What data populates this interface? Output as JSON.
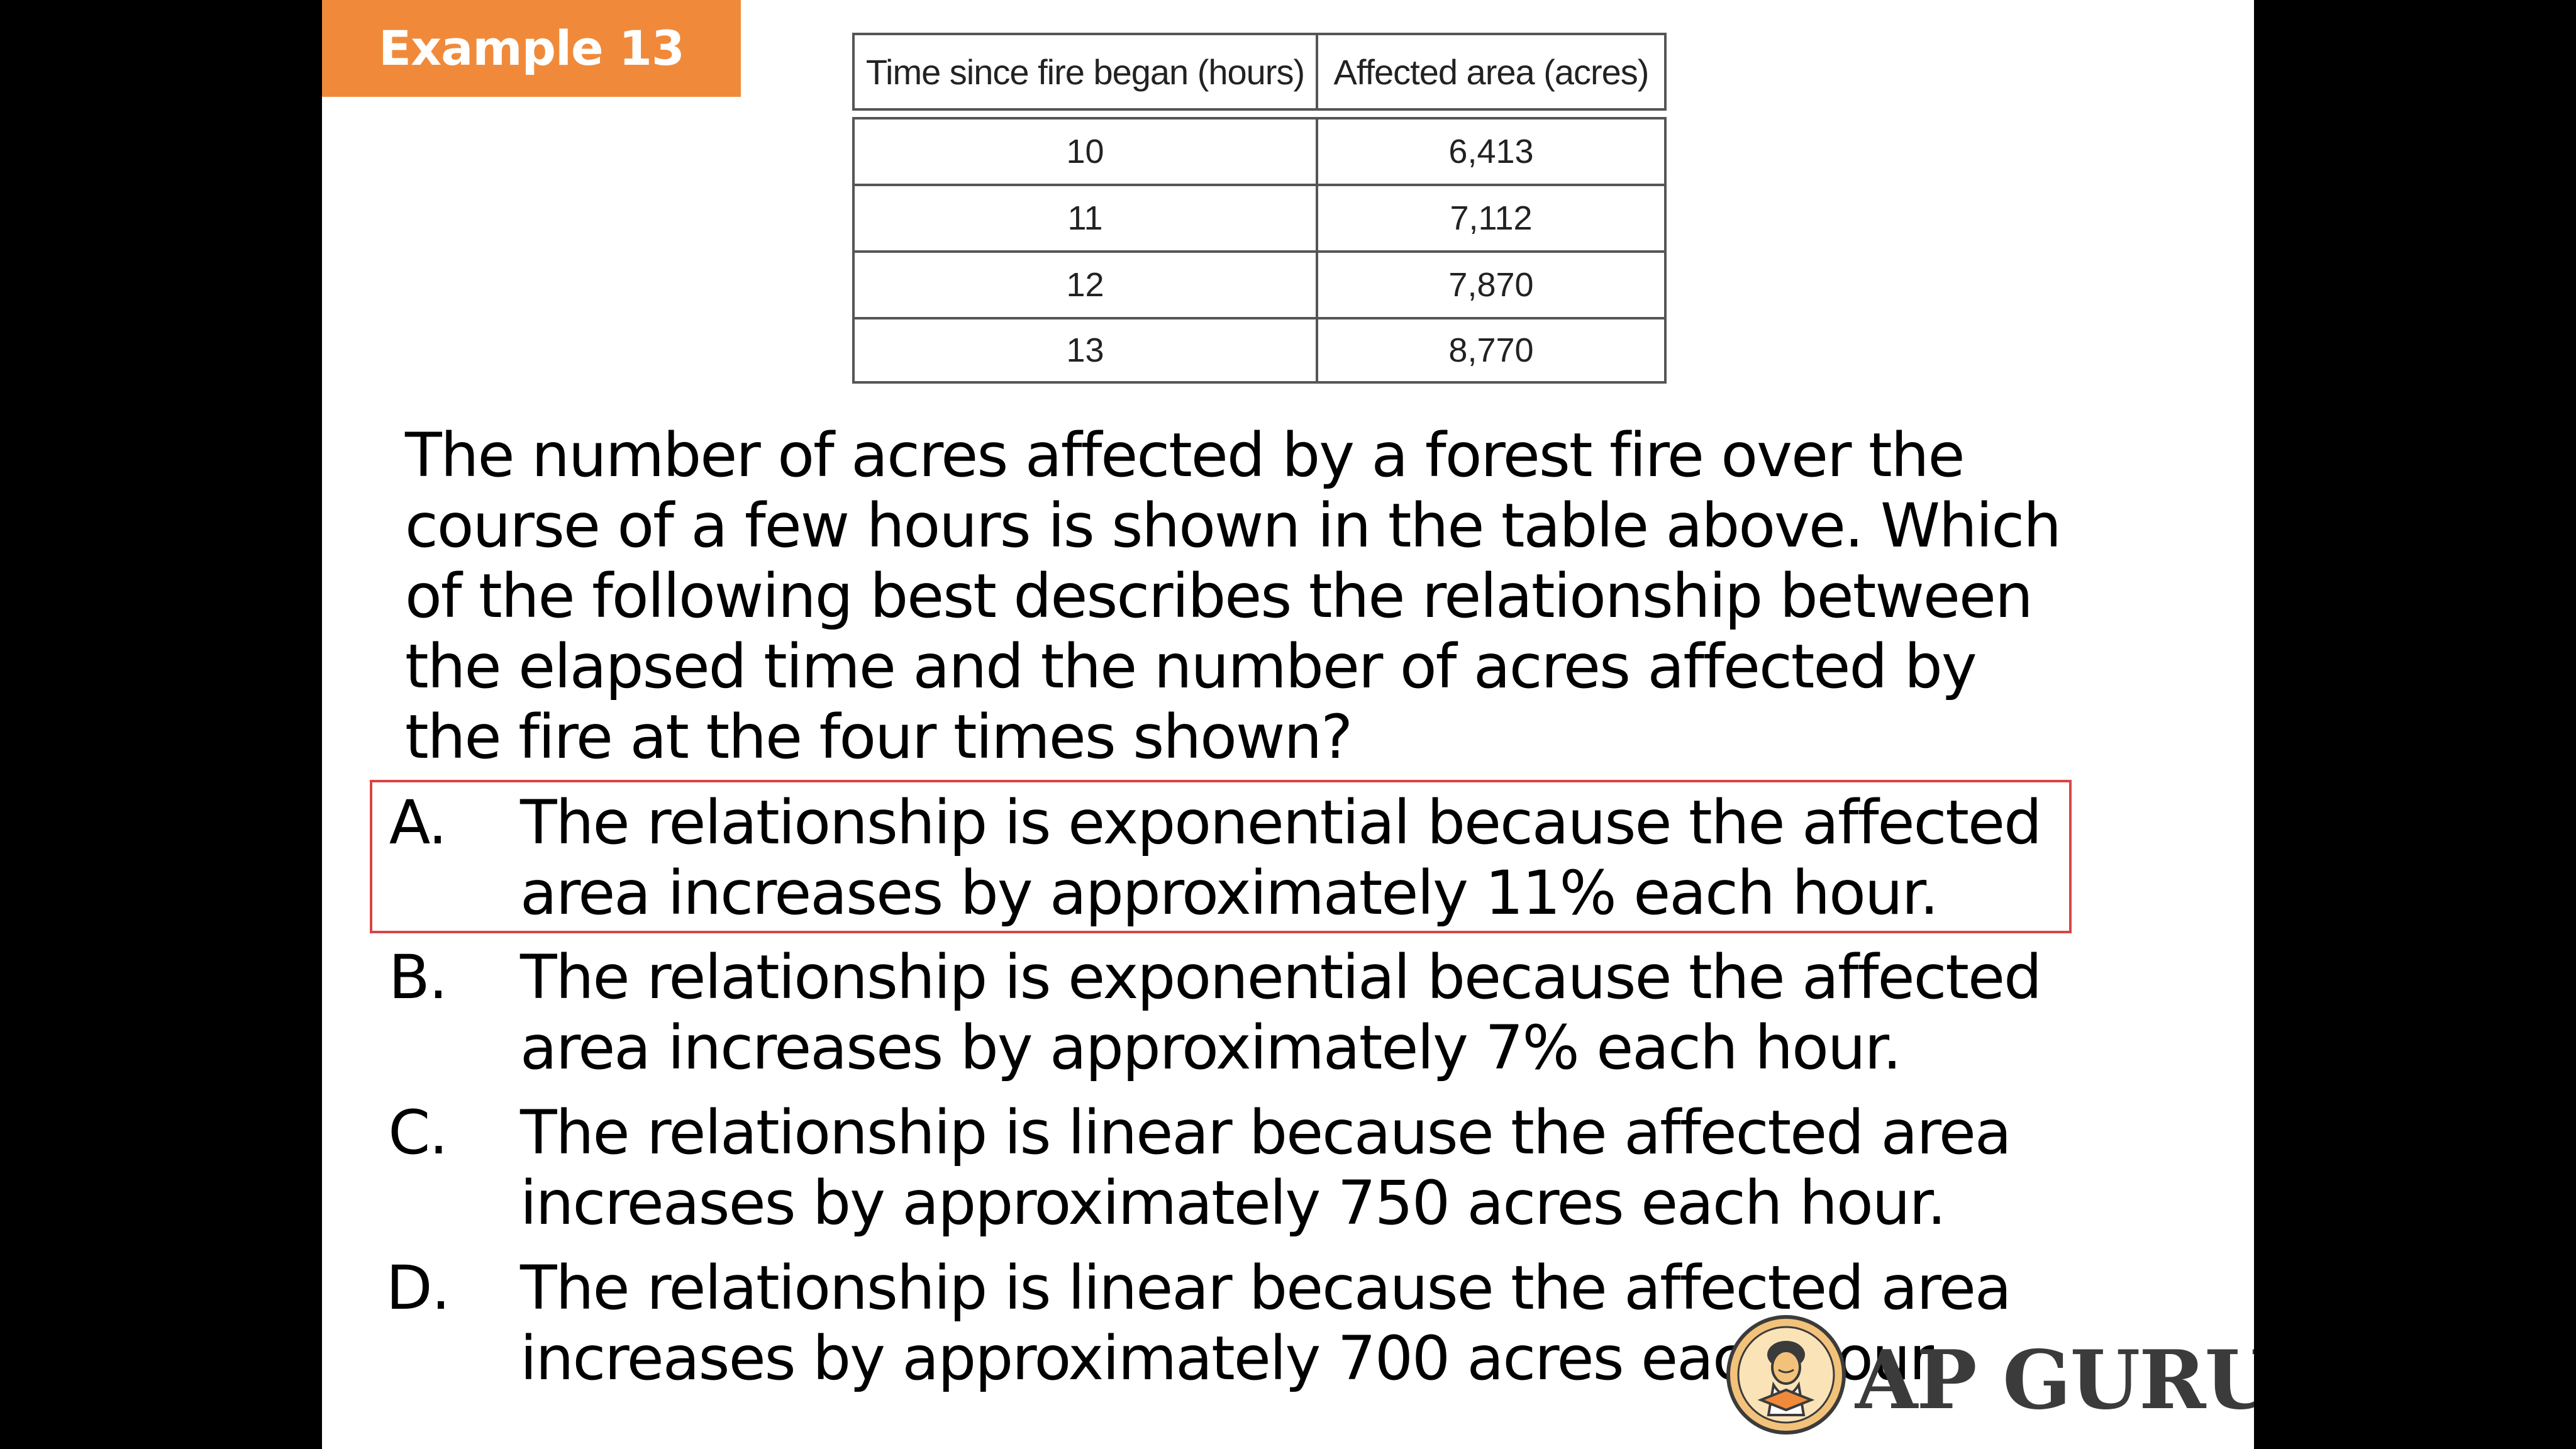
{
  "badge": {
    "label": "Example 13"
  },
  "table": {
    "headers": [
      "Time since fire began (hours)",
      "Affected area (acres)"
    ],
    "rows": [
      [
        "10",
        "6,413"
      ],
      [
        "11",
        "7,112"
      ],
      [
        "12",
        "7,870"
      ],
      [
        "13",
        "8,770"
      ]
    ]
  },
  "question": {
    "lines": [
      "The number of acres affected by a forest fire over the",
      "course of a few hours is shown in the table above.  Which",
      "of the following best describes the relationship between",
      "the elapsed time and the number of acres affected by",
      "the fire at the four times shown?"
    ]
  },
  "choices": [
    {
      "letter": "A.",
      "line1": "The relationship is exponential because the affected",
      "line2": "area increases by approximately 11% each hour."
    },
    {
      "letter": "B.",
      "line1": "The relationship is exponential because the affected",
      "line2": "area increases by approximately 7% each hour."
    },
    {
      "letter": "C.",
      "line1": "The relationship is linear because the affected area",
      "line2": "increases by approximately 750 acres each hour."
    },
    {
      "letter": "D.",
      "line1": "The relationship is linear because the affected area",
      "line2": "increases by approximately 700 acres each hour."
    }
  ],
  "highlight": {
    "selected_choice": "A.",
    "color": "#d94545"
  },
  "logo": {
    "text": "AP GURU",
    "icon": "guru-emblem-icon"
  },
  "colors": {
    "badge_background": "#f08a3a",
    "slide_background": "#ffffff",
    "page_background": "#000000"
  }
}
